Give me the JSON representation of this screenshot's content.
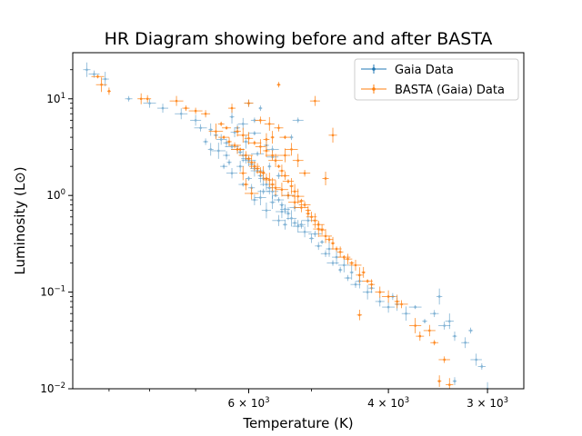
{
  "chart_data": {
    "type": "scatter",
    "title": "HR Diagram showing before and after BASTA",
    "xlabel": "Temperature (K)",
    "ylabel": "Luminosity (L⊙)",
    "x_scale": "log",
    "x_inverted": true,
    "y_scale": "log",
    "xlim": [
      10000,
      2700
    ],
    "ylim": [
      0.01,
      30
    ],
    "x_ticks": [
      {
        "value": 6000,
        "mantissa": "6",
        "base": "10",
        "exp": "3"
      },
      {
        "value": 4000,
        "mantissa": "4",
        "base": "10",
        "exp": "3"
      },
      {
        "value": 3000,
        "mantissa": "3",
        "base": "10",
        "exp": "3"
      }
    ],
    "x_minor_ticks": [
      9000,
      8000,
      7000,
      5000
    ],
    "y_ticks": [
      {
        "value": 0.01,
        "base": "10",
        "exp": "−2"
      },
      {
        "value": 0.1,
        "base": "10",
        "exp": "−1"
      },
      {
        "value": 1,
        "base": "10",
        "exp": "0"
      },
      {
        "value": 10,
        "base": "10",
        "exp": "1"
      }
    ],
    "grid": false,
    "legend_position": "top-right",
    "series": [
      {
        "name": "Gaia Data",
        "color": "#1f77b4",
        "marker": "dot-with-errorbars",
        "points": [
          [
            9400,
            18
          ],
          [
            9100,
            16
          ],
          [
            9600,
            20
          ],
          [
            8500,
            10
          ],
          [
            8000,
            9
          ],
          [
            7700,
            8
          ],
          [
            7300,
            7
          ],
          [
            7000,
            6
          ],
          [
            6900,
            5
          ],
          [
            6700,
            4.8
          ],
          [
            6600,
            4.2
          ],
          [
            6500,
            3.8
          ],
          [
            6400,
            3.5
          ],
          [
            6300,
            3.2
          ],
          [
            6200,
            3.0
          ],
          [
            6150,
            2.8
          ],
          [
            6100,
            2.6
          ],
          [
            6050,
            2.4
          ],
          [
            6000,
            2.3
          ],
          [
            5950,
            2.1
          ],
          [
            5900,
            1.9
          ],
          [
            5850,
            1.8
          ],
          [
            5800,
            1.6
          ],
          [
            5750,
            1.5
          ],
          [
            5700,
            1.3
          ],
          [
            5650,
            1.2
          ],
          [
            5600,
            1.1
          ],
          [
            5550,
            1.0
          ],
          [
            5500,
            0.9
          ],
          [
            5450,
            0.8
          ],
          [
            5400,
            0.72
          ],
          [
            5350,
            0.65
          ],
          [
            5300,
            0.58
          ],
          [
            5250,
            0.52
          ],
          [
            5200,
            0.48
          ],
          [
            5100,
            0.42
          ],
          [
            5000,
            0.36
          ],
          [
            4900,
            0.3
          ],
          [
            4800,
            0.25
          ],
          [
            4700,
            0.2
          ],
          [
            4600,
            0.17
          ],
          [
            4500,
            0.14
          ],
          [
            4400,
            0.12
          ],
          [
            4250,
            0.1
          ],
          [
            4100,
            0.08
          ],
          [
            4000,
            0.07
          ],
          [
            3800,
            0.06
          ],
          [
            3600,
            0.05
          ],
          [
            3400,
            0.045
          ],
          [
            3300,
            0.035
          ],
          [
            3200,
            0.03
          ],
          [
            3100,
            0.02
          ],
          [
            3050,
            0.017
          ],
          [
            3300,
            0.012
          ],
          [
            6000,
            9
          ],
          [
            5800,
            8
          ],
          [
            5900,
            6
          ],
          [
            5200,
            6
          ],
          [
            5300,
            4
          ],
          [
            5600,
            3
          ],
          [
            6200,
            5
          ],
          [
            6400,
            2.6
          ],
          [
            6100,
            1.3
          ],
          [
            5900,
            0.9
          ],
          [
            5700,
            0.7
          ],
          [
            5500,
            0.55
          ],
          [
            5400,
            0.5
          ],
          [
            6300,
            1.7
          ],
          [
            6350,
            2.2
          ],
          [
            6250,
            4.5
          ],
          [
            6050,
            3.6
          ],
          [
            5850,
            2.7
          ],
          [
            5650,
            2.0
          ],
          [
            5750,
            1.1
          ],
          [
            5600,
            0.85
          ],
          [
            5450,
            0.68
          ],
          [
            5150,
            0.5
          ],
          [
            4950,
            0.4
          ],
          [
            4850,
            0.33
          ],
          [
            4650,
            0.23
          ],
          [
            4550,
            0.19
          ],
          [
            4450,
            0.16
          ],
          [
            4350,
            0.13
          ],
          [
            3950,
            0.09
          ],
          [
            3700,
            0.07
          ],
          [
            3500,
            0.06
          ],
          [
            3150,
            0.04
          ],
          [
            6700,
            3.0
          ],
          [
            6800,
            3.6
          ],
          [
            6550,
            2.9
          ],
          [
            6450,
            2.0
          ],
          [
            6000,
            1.5
          ],
          [
            5950,
            1.2
          ],
          [
            5800,
            0.95
          ],
          [
            6150,
            2.0
          ],
          [
            5350,
            1.0
          ],
          [
            5250,
            0.75
          ],
          [
            5050,
            0.55
          ],
          [
            4750,
            0.28
          ],
          [
            5500,
            1.6
          ],
          [
            5600,
            2.5
          ],
          [
            5700,
            3.3
          ],
          [
            5900,
            4.4
          ],
          [
            6100,
            5.5
          ],
          [
            6300,
            6.5
          ],
          [
            4200,
            0.11
          ],
          [
            3900,
            0.075
          ],
          [
            3450,
            0.09
          ],
          [
            3350,
            0.05
          ],
          [
            3000,
            0.01
          ]
        ]
      },
      {
        "name": "BASTA (Gaia) Data",
        "color": "#ff7f0e",
        "marker": "dot-with-errorbars",
        "points": [
          [
            9300,
            17
          ],
          [
            9200,
            14
          ],
          [
            9000,
            12
          ],
          [
            8200,
            10
          ],
          [
            8050,
            10
          ],
          [
            7400,
            9.5
          ],
          [
            7200,
            8
          ],
          [
            7000,
            7.5
          ],
          [
            6800,
            7
          ],
          [
            6500,
            5.5
          ],
          [
            6400,
            5
          ],
          [
            6200,
            4.6
          ],
          [
            6100,
            4.2
          ],
          [
            6000,
            3.9
          ],
          [
            5900,
            3.5
          ],
          [
            5800,
            3.2
          ],
          [
            5700,
            2.9
          ],
          [
            5600,
            2.6
          ],
          [
            5550,
            2.3
          ],
          [
            5500,
            2.0
          ],
          [
            5450,
            1.8
          ],
          [
            5400,
            1.6
          ],
          [
            5350,
            1.4
          ],
          [
            5300,
            1.25
          ],
          [
            5250,
            1.1
          ],
          [
            5200,
            0.98
          ],
          [
            5150,
            0.88
          ],
          [
            5100,
            0.8
          ],
          [
            5050,
            0.7
          ],
          [
            5000,
            0.6
          ],
          [
            4900,
            0.5
          ],
          [
            4850,
            0.44
          ],
          [
            4800,
            0.38
          ],
          [
            4700,
            0.32
          ],
          [
            4600,
            0.26
          ],
          [
            4500,
            0.22
          ],
          [
            4400,
            0.19
          ],
          [
            4300,
            0.16
          ],
          [
            4200,
            0.12
          ],
          [
            4100,
            0.1
          ],
          [
            4000,
            0.09
          ],
          [
            3900,
            0.08
          ],
          [
            3850,
            0.075
          ],
          [
            3700,
            0.045
          ],
          [
            3650,
            0.035
          ],
          [
            3550,
            0.04
          ],
          [
            3500,
            0.03
          ],
          [
            3400,
            0.02
          ],
          [
            3450,
            0.012
          ],
          [
            3350,
            0.011
          ],
          [
            5500,
            14
          ],
          [
            4950,
            9.5
          ],
          [
            4700,
            4.2
          ],
          [
            4800,
            1.5
          ],
          [
            4350,
            0.058
          ],
          [
            6300,
            8
          ],
          [
            6000,
            9
          ],
          [
            5600,
            4
          ],
          [
            5400,
            2.6
          ],
          [
            5700,
            3.8
          ],
          [
            6200,
            3.0
          ],
          [
            6050,
            2.6
          ],
          [
            5950,
            2.2
          ],
          [
            5850,
            1.9
          ],
          [
            5750,
            1.7
          ],
          [
            5650,
            1.45
          ],
          [
            5600,
            1.3
          ],
          [
            5450,
            1.15
          ],
          [
            5350,
            1.0
          ],
          [
            5250,
            0.85
          ],
          [
            5150,
            0.75
          ],
          [
            5050,
            0.65
          ],
          [
            4950,
            0.55
          ],
          [
            4900,
            0.45
          ],
          [
            4750,
            0.35
          ],
          [
            4650,
            0.28
          ],
          [
            4550,
            0.23
          ],
          [
            4450,
            0.2
          ],
          [
            4350,
            0.15
          ],
          [
            4250,
            0.13
          ],
          [
            6600,
            4.6
          ],
          [
            6450,
            4.0
          ],
          [
            6350,
            3.6
          ],
          [
            6250,
            3.3
          ],
          [
            6150,
            3.0
          ],
          [
            6000,
            2.4
          ],
          [
            5900,
            2.0
          ],
          [
            5800,
            1.75
          ],
          [
            5700,
            1.5
          ],
          [
            5550,
            1.2
          ],
          [
            5300,
            3.0
          ],
          [
            5400,
            4.0
          ],
          [
            5500,
            5.0
          ],
          [
            5650,
            5.5
          ],
          [
            5800,
            6.0
          ],
          [
            5200,
            2.3
          ],
          [
            5100,
            1.7
          ],
          [
            6100,
            1.7
          ],
          [
            6050,
            1.3
          ],
          [
            5950,
            1.05
          ]
        ]
      }
    ]
  }
}
